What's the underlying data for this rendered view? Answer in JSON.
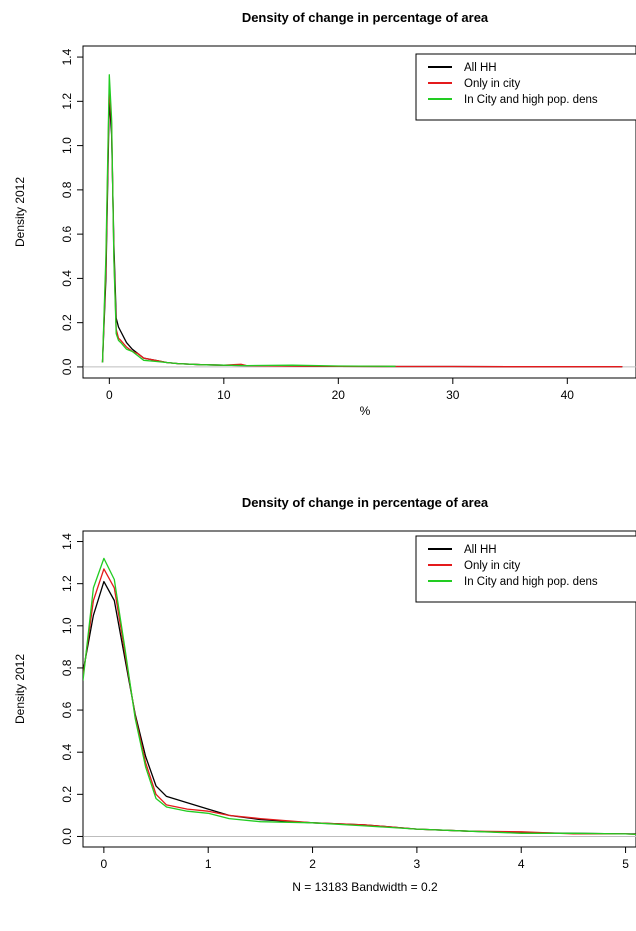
{
  "chart_data": [
    {
      "type": "line",
      "title": "Density of change in percentage of area",
      "xlabel": "%",
      "ylabel": "Density 2012",
      "xlim": [
        -2.3,
        46
      ],
      "ylim": [
        -0.05,
        1.45
      ],
      "xticks": [
        0,
        10,
        20,
        30,
        40
      ],
      "yticks": [
        0.0,
        0.2,
        0.4,
        0.6,
        0.8,
        1.0,
        1.2,
        1.4
      ],
      "ytick_labels": [
        "0.0",
        "0.2",
        "0.4",
        "0.6",
        "0.8",
        "1.0",
        "1.2",
        "1.4"
      ],
      "grid": false,
      "baseline": 0,
      "legend": "top-right",
      "series": [
        {
          "name": "All HH",
          "color": "#000000",
          "x": [
            -0.6,
            -0.3,
            0,
            0.2,
            0.4,
            0.6,
            0.8,
            1,
            1.5,
            2,
            2.5,
            3,
            4,
            5,
            6,
            8,
            10,
            12,
            15,
            20,
            25,
            30,
            35,
            40,
            44.8
          ],
          "y": [
            0.02,
            0.4,
            1.21,
            1.05,
            0.55,
            0.22,
            0.18,
            0.16,
            0.11,
            0.08,
            0.06,
            0.04,
            0.03,
            0.02,
            0.015,
            0.01,
            0.008,
            0.006,
            0.005,
            0.003,
            0.002,
            0.002,
            0.001,
            0.001,
            0.001
          ]
        },
        {
          "name": "Only in city",
          "color": "#e41a1c",
          "x": [
            -0.6,
            -0.3,
            0,
            0.2,
            0.4,
            0.6,
            0.8,
            1,
            1.5,
            2,
            2.5,
            3,
            4,
            5,
            6,
            8,
            10,
            11.5,
            12,
            15,
            20,
            25,
            30,
            35,
            40,
            44.8
          ],
          "y": [
            0.02,
            0.45,
            1.27,
            1.1,
            0.5,
            0.17,
            0.13,
            0.12,
            0.09,
            0.07,
            0.06,
            0.04,
            0.03,
            0.02,
            0.015,
            0.01,
            0.008,
            0.012,
            0.006,
            0.004,
            0.003,
            0.002,
            0.002,
            0.001,
            0.001,
            0.001
          ]
        },
        {
          "name": "In City and high pop. dens",
          "color": "#22cc22",
          "x": [
            -0.6,
            -0.3,
            0,
            0.2,
            0.4,
            0.6,
            0.8,
            1,
            1.5,
            2,
            2.5,
            3,
            4,
            5,
            6,
            8,
            10,
            12,
            16,
            20,
            25
          ],
          "y": [
            0.02,
            0.5,
            1.32,
            1.12,
            0.48,
            0.15,
            0.12,
            0.11,
            0.08,
            0.07,
            0.05,
            0.03,
            0.025,
            0.02,
            0.015,
            0.01,
            0.008,
            0.006,
            0.008,
            0.004,
            0.003
          ]
        }
      ]
    },
    {
      "type": "line",
      "title": "Density of change in percentage of area",
      "xlabel": "N = 13183   Bandwidth = 0.2",
      "ylabel": "Density 2012",
      "xlim": [
        -0.2,
        5.1
      ],
      "ylim": [
        -0.05,
        1.45
      ],
      "xticks": [
        0,
        1,
        2,
        3,
        4,
        5
      ],
      "yticks": [
        0.0,
        0.2,
        0.4,
        0.6,
        0.8,
        1.0,
        1.2,
        1.4
      ],
      "ytick_labels": [
        "0.0",
        "0.2",
        "0.4",
        "0.6",
        "0.8",
        "1.0",
        "1.2",
        "1.4"
      ],
      "grid": false,
      "baseline": 0,
      "legend": "top-right",
      "series": [
        {
          "name": "All HH",
          "color": "#000000",
          "x": [
            -0.2,
            -0.1,
            0,
            0.1,
            0.2,
            0.3,
            0.4,
            0.5,
            0.6,
            0.8,
            1,
            1.2,
            1.5,
            2,
            2.5,
            3,
            3.5,
            4,
            4.5,
            5,
            5.1
          ],
          "y": [
            0.78,
            1.05,
            1.21,
            1.12,
            0.85,
            0.58,
            0.38,
            0.24,
            0.19,
            0.16,
            0.13,
            0.1,
            0.08,
            0.065,
            0.055,
            0.035,
            0.025,
            0.018,
            0.015,
            0.012,
            0.012
          ]
        },
        {
          "name": "Only in city",
          "color": "#e41a1c",
          "x": [
            -0.2,
            -0.1,
            0,
            0.1,
            0.2,
            0.3,
            0.4,
            0.5,
            0.6,
            0.8,
            1,
            1.2,
            1.5,
            2,
            2.5,
            3,
            3.5,
            4,
            4.5,
            5,
            5.1
          ],
          "y": [
            0.76,
            1.12,
            1.27,
            1.18,
            0.88,
            0.57,
            0.35,
            0.2,
            0.15,
            0.13,
            0.12,
            0.1,
            0.085,
            0.065,
            0.055,
            0.035,
            0.025,
            0.022,
            0.012,
            0.012,
            0.01
          ]
        },
        {
          "name": "In City and high pop. dens",
          "color": "#22cc22",
          "x": [
            -0.2,
            -0.1,
            0,
            0.1,
            0.2,
            0.3,
            0.4,
            0.5,
            0.6,
            0.8,
            1,
            1.2,
            1.5,
            2,
            2.5,
            3,
            3.5,
            4,
            4.5,
            5,
            5.1
          ],
          "y": [
            0.74,
            1.18,
            1.32,
            1.22,
            0.9,
            0.56,
            0.33,
            0.18,
            0.14,
            0.12,
            0.11,
            0.085,
            0.07,
            0.065,
            0.05,
            0.035,
            0.025,
            0.015,
            0.015,
            0.012,
            0.01
          ]
        }
      ]
    }
  ]
}
